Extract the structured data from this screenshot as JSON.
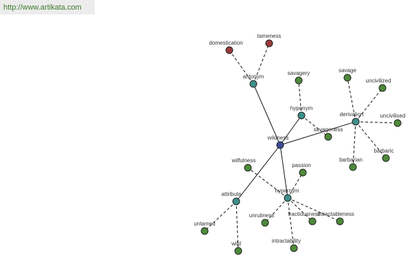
{
  "header": {
    "url": "http://www.artikata.com"
  },
  "nodes": [
    {
      "label": "wildness"
    },
    {
      "label": "antonym"
    },
    {
      "label": "domestication"
    },
    {
      "label": "tameness"
    },
    {
      "label": "hyponym"
    },
    {
      "label": "savagery"
    },
    {
      "label": "savageness"
    },
    {
      "label": "derivation"
    },
    {
      "label": "savage"
    },
    {
      "label": "uncivilized"
    },
    {
      "label": "uncivilised"
    },
    {
      "label": "barbaric"
    },
    {
      "label": "barbarian"
    },
    {
      "label": "hypernym"
    },
    {
      "label": "passion"
    },
    {
      "label": "wilfulness"
    },
    {
      "label": "unruliness"
    },
    {
      "label": "intractability"
    },
    {
      "label": "fractiousness"
    },
    {
      "label": "intractableness"
    },
    {
      "label": "attribute"
    },
    {
      "label": "untamed"
    },
    {
      "label": "wild"
    }
  ]
}
